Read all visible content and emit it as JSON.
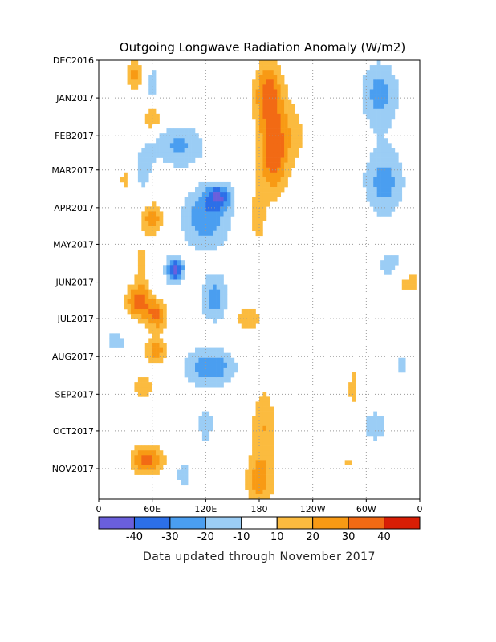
{
  "chart_data": {
    "type": "heatmap",
    "title": "Outgoing Longwave Radiation Anomaly (W/m2)",
    "footer": "Data updated through November 2017",
    "x_ticks": [
      {
        "label": "0",
        "lon": 0
      },
      {
        "label": "60E",
        "lon": 60
      },
      {
        "label": "120E",
        "lon": 120
      },
      {
        "label": "180",
        "lon": 180
      },
      {
        "label": "120W",
        "lon": 240
      },
      {
        "label": "60W",
        "lon": 300
      },
      {
        "label": "0",
        "lon": 360
      }
    ],
    "xlim": [
      0,
      360
    ],
    "y_ticks": [
      {
        "label": "DEC2016",
        "day": 0
      },
      {
        "label": "JAN2017",
        "day": 31
      },
      {
        "label": "FEB2017",
        "day": 62
      },
      {
        "label": "MAR2017",
        "day": 90
      },
      {
        "label": "APR2017",
        "day": 121
      },
      {
        "label": "MAY2017",
        "day": 151
      },
      {
        "label": "JUN2017",
        "day": 182
      },
      {
        "label": "JUL2017",
        "day": 212
      },
      {
        "label": "AUG2017",
        "day": 243
      },
      {
        "label": "SEP2017",
        "day": 274
      },
      {
        "label": "OCT2017",
        "day": 304
      },
      {
        "label": "NOV2017",
        "day": 335
      }
    ],
    "ylim": [
      0,
      360
    ],
    "grid": true,
    "colorbar": {
      "bins": [
        {
          "min": -50,
          "max": -40,
          "color": "#6a5fdc"
        },
        {
          "min": -40,
          "max": -30,
          "color": "#2c6fe8"
        },
        {
          "min": -30,
          "max": -20,
          "color": "#4a9ef0"
        },
        {
          "min": -20,
          "max": -10,
          "color": "#9bcdf5"
        },
        {
          "min": -10,
          "max": 10,
          "color": "#ffffff"
        },
        {
          "min": 10,
          "max": 20,
          "color": "#fbbb3f"
        },
        {
          "min": 20,
          "max": 30,
          "color": "#f89a14"
        },
        {
          "min": 30,
          "max": 40,
          "color": "#f26a14"
        },
        {
          "min": 40,
          "max": 50,
          "color": "#d81e05"
        }
      ],
      "labels": [
        "-40",
        "-30",
        "-20",
        "-10",
        "10",
        "20",
        "30",
        "40"
      ]
    },
    "anomaly_features": [
      {
        "lon": 40,
        "day": 12,
        "value": 25,
        "rlon": 10,
        "rday": 12
      },
      {
        "lon": 60,
        "day": 48,
        "value": 22,
        "rlon": 12,
        "rday": 10
      },
      {
        "lon": 48,
        "day": 168,
        "value": 15,
        "rlon": 8,
        "rday": 18
      },
      {
        "lon": 45,
        "day": 198,
        "value": 35,
        "rlon": 15,
        "rday": 14
      },
      {
        "lon": 65,
        "day": 210,
        "value": 30,
        "rlon": 12,
        "rday": 12
      },
      {
        "lon": 65,
        "day": 238,
        "value": 25,
        "rlon": 14,
        "rday": 10
      },
      {
        "lon": 50,
        "day": 268,
        "value": 18,
        "rlon": 12,
        "rday": 10
      },
      {
        "lon": 55,
        "day": 328,
        "value": 35,
        "rlon": 18,
        "rday": 12
      },
      {
        "lon": 60,
        "day": 130,
        "value": 25,
        "rlon": 14,
        "rday": 14
      },
      {
        "lon": 30,
        "day": 98,
        "value": 15,
        "rlon": 8,
        "rday": 8
      },
      {
        "lon": 190,
        "day": 28,
        "value": 35,
        "rlon": 16,
        "rday": 26
      },
      {
        "lon": 195,
        "day": 78,
        "value": 35,
        "rlon": 16,
        "rday": 32
      },
      {
        "lon": 178,
        "day": 128,
        "value": 18,
        "rlon": 10,
        "rday": 22
      },
      {
        "lon": 168,
        "day": 212,
        "value": 18,
        "rlon": 16,
        "rday": 12
      },
      {
        "lon": 185,
        "day": 300,
        "value": 20,
        "rlon": 14,
        "rday": 32
      },
      {
        "lon": 180,
        "day": 345,
        "value": 25,
        "rlon": 16,
        "rday": 20
      },
      {
        "lon": 215,
        "day": 60,
        "value": 14,
        "rlon": 20,
        "rday": 30
      },
      {
        "lon": 345,
        "day": 180,
        "value": 18,
        "rlon": 20,
        "rday": 14
      },
      {
        "lon": 285,
        "day": 270,
        "value": 14,
        "rlon": 6,
        "rday": 22
      },
      {
        "lon": 280,
        "day": 330,
        "value": 12,
        "rlon": 8,
        "rday": 10
      },
      {
        "lon": 90,
        "day": 70,
        "value": -22,
        "rlon": 30,
        "rday": 18
      },
      {
        "lon": 120,
        "day": 130,
        "value": -28,
        "rlon": 28,
        "rday": 26
      },
      {
        "lon": 135,
        "day": 112,
        "value": -32,
        "rlon": 14,
        "rday": 10
      },
      {
        "lon": 85,
        "day": 172,
        "value": -45,
        "rlon": 10,
        "rday": 10
      },
      {
        "lon": 130,
        "day": 195,
        "value": -25,
        "rlon": 16,
        "rday": 20
      },
      {
        "lon": 125,
        "day": 252,
        "value": -28,
        "rlon": 30,
        "rday": 16
      },
      {
        "lon": 120,
        "day": 300,
        "value": -16,
        "rlon": 10,
        "rday": 18
      },
      {
        "lon": 95,
        "day": 340,
        "value": -15,
        "rlon": 10,
        "rday": 14
      },
      {
        "lon": 60,
        "day": 20,
        "value": -14,
        "rlon": 8,
        "rday": 20
      },
      {
        "lon": 50,
        "day": 90,
        "value": -14,
        "rlon": 12,
        "rday": 22
      },
      {
        "lon": 315,
        "day": 28,
        "value": -24,
        "rlon": 22,
        "rday": 28
      },
      {
        "lon": 320,
        "day": 100,
        "value": -24,
        "rlon": 24,
        "rday": 30
      },
      {
        "lon": 330,
        "day": 170,
        "value": -18,
        "rlon": 22,
        "rday": 14
      },
      {
        "lon": 310,
        "day": 300,
        "value": -14,
        "rlon": 20,
        "rday": 18
      },
      {
        "lon": 20,
        "day": 230,
        "value": -14,
        "rlon": 12,
        "rday": 14
      },
      {
        "lon": 340,
        "day": 250,
        "value": -12,
        "rlon": 12,
        "rday": 14
      }
    ]
  }
}
